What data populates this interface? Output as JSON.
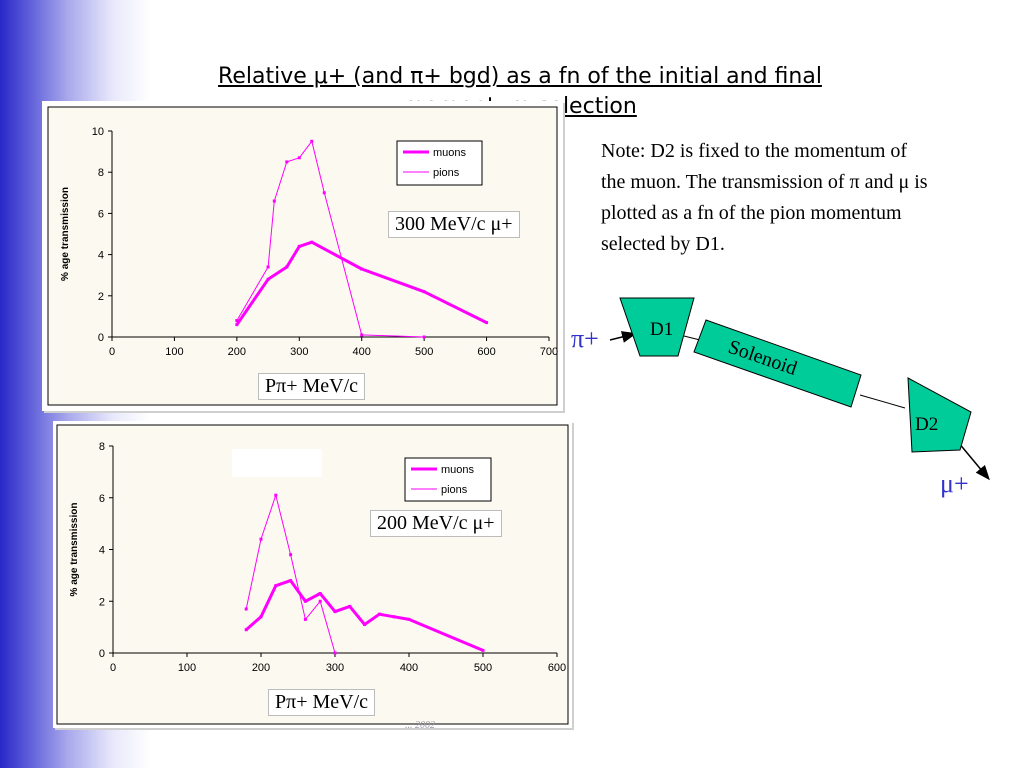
{
  "slide": {
    "title_line1": "Relative μ+ (and π+ bgd) as a fn of the initial and final",
    "title_line2": "momentum selection",
    "note": "Note: D2 is fixed to the momentum of the muon. The transmission of π and μ is plotted as a fn of the pion momentum selected by D1.",
    "footer": "... 2002"
  },
  "chart_data": [
    {
      "type": "line",
      "ylabel": "% age transmission",
      "xlim": [
        0,
        700
      ],
      "ylim": [
        0,
        10
      ],
      "xticks": [
        0,
        100,
        200,
        300,
        400,
        500,
        600,
        700
      ],
      "yticks": [
        0,
        2,
        4,
        6,
        8,
        10
      ],
      "legend_position": "top-right",
      "series": [
        {
          "name": "muons",
          "x": [
            200,
            250,
            280,
            300,
            320,
            400,
            500,
            600
          ],
          "y": [
            0.6,
            2.8,
            3.4,
            4.4,
            4.6,
            3.3,
            2.2,
            0.7
          ]
        },
        {
          "name": "pions",
          "x": [
            200,
            250,
            260,
            280,
            300,
            320,
            340,
            400,
            500
          ],
          "y": [
            0.8,
            3.4,
            6.6,
            8.5,
            8.7,
            9.5,
            7.0,
            0.1,
            0.0
          ]
        }
      ],
      "annotation": "300 MeV/c μ+",
      "xlabel_box": "Pπ+ MeV/c"
    },
    {
      "type": "line",
      "ylabel": "% age transmission",
      "xlim": [
        0,
        600
      ],
      "ylim": [
        0,
        8
      ],
      "xticks": [
        0,
        100,
        200,
        300,
        400,
        500,
        600
      ],
      "yticks": [
        0,
        2,
        4,
        6,
        8
      ],
      "legend_position": "top-right",
      "series": [
        {
          "name": "muons",
          "x": [
            180,
            200,
            220,
            240,
            260,
            280,
            300,
            320,
            340,
            360,
            380,
            400,
            500
          ],
          "y": [
            0.9,
            1.4,
            2.6,
            2.8,
            2.0,
            2.3,
            1.6,
            1.8,
            1.1,
            1.5,
            1.4,
            1.3,
            0.1
          ]
        },
        {
          "name": "pions",
          "x": [
            180,
            200,
            220,
            240,
            260,
            280,
            300
          ],
          "y": [
            1.7,
            4.4,
            6.1,
            3.8,
            1.3,
            2.0,
            0.0
          ]
        }
      ],
      "annotation": "200 MeV/c μ+",
      "xlabel_box": "Pπ+ MeV/c"
    }
  ],
  "diagram": {
    "d1": "D1",
    "d2": "D2",
    "solenoid": "Solenoid",
    "pi_label": "π+",
    "mu_label": "μ+"
  },
  "colors": {
    "muons": "#ff00ff",
    "pions": "#ff00ff",
    "plot_bg": "#fcfaf0",
    "magnet_fill": "#00cc99"
  }
}
